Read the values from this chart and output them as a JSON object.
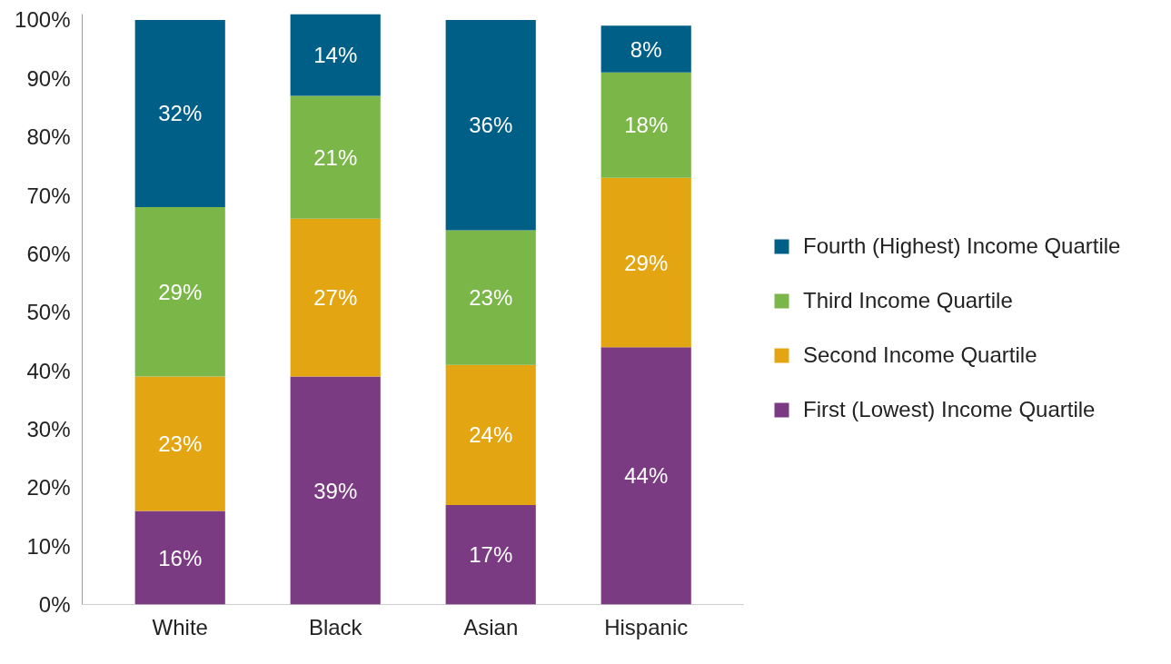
{
  "chart_data": {
    "type": "bar",
    "stacked": true,
    "categories": [
      "White",
      "Black",
      "Asian",
      "Hispanic"
    ],
    "series": [
      {
        "name": "First (Lowest) Income Quartile",
        "color": "#7b3b82",
        "values": [
          16,
          39,
          17,
          44
        ],
        "value_labels": [
          "16%",
          "39%",
          "17%",
          "44%"
        ]
      },
      {
        "name": "Second Income Quartile",
        "color": "#e3a612",
        "values": [
          23,
          27,
          24,
          29
        ],
        "value_labels": [
          "23%",
          "27%",
          "24%",
          "29%"
        ]
      },
      {
        "name": "Third Income Quartile",
        "color": "#7ab648",
        "values": [
          29,
          21,
          23,
          18
        ],
        "value_labels": [
          "29%",
          "21%",
          "23%",
          "18%"
        ]
      },
      {
        "name": "Fourth (Highest) Income Quartile",
        "color": "#005f87",
        "values": [
          32,
          14,
          36,
          8
        ],
        "value_labels": [
          "32%",
          "14%",
          "36%",
          "8%"
        ]
      }
    ],
    "ylim": [
      0,
      101
    ],
    "yticks": [
      {
        "value": 0,
        "label": "0%"
      },
      {
        "value": 10,
        "label": "10%"
      },
      {
        "value": 20,
        "label": "20%"
      },
      {
        "value": 30,
        "label": "30%"
      },
      {
        "value": 40,
        "label": "40%"
      },
      {
        "value": 50,
        "label": "50%"
      },
      {
        "value": 60,
        "label": "60%"
      },
      {
        "value": 70,
        "label": "70%"
      },
      {
        "value": 80,
        "label": "80%"
      },
      {
        "value": 90,
        "label": "90%"
      },
      {
        "value": 100,
        "label": "100%"
      }
    ],
    "grid": false,
    "legend": "right"
  }
}
